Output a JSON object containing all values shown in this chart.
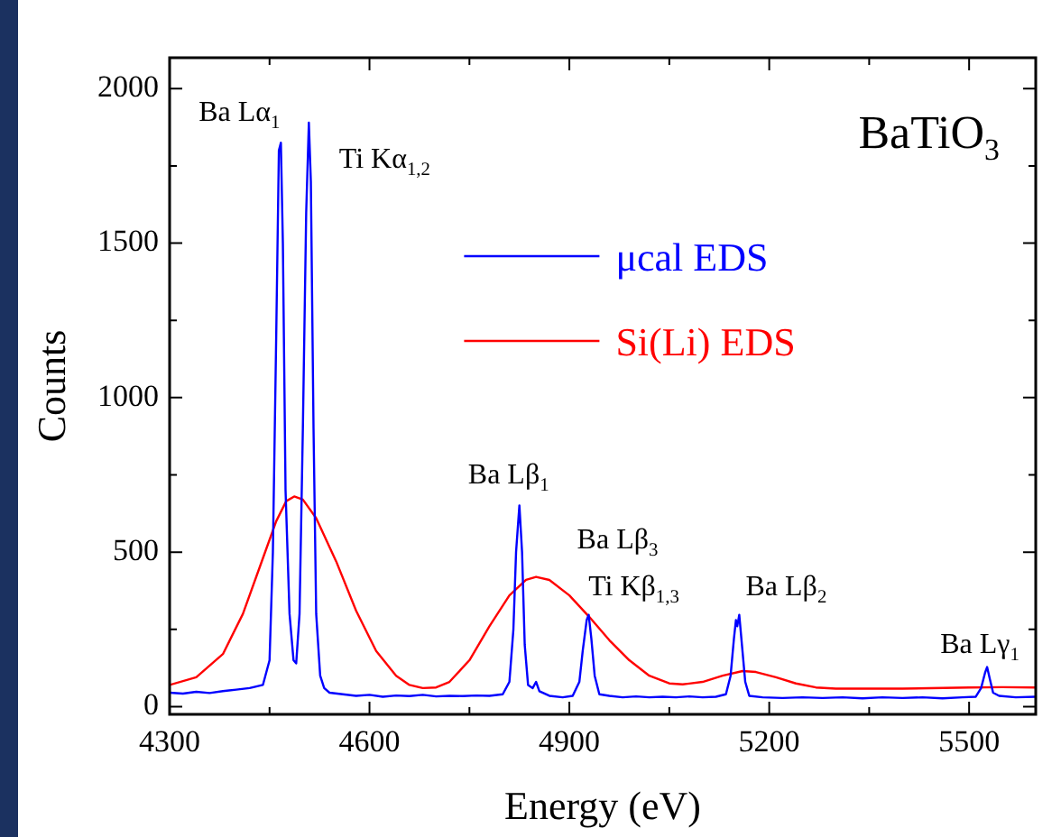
{
  "chart_data": {
    "type": "line",
    "xlabel": "Energy (eV)",
    "ylabel": "Counts",
    "xlim": [
      4300,
      5600
    ],
    "ylim": [
      -25,
      2100
    ],
    "xticks": [
      4300,
      {
        "value": 4450,
        "label": null
      },
      4600,
      {
        "value": 4750,
        "label": null
      },
      4900,
      {
        "value": 5050,
        "label": null
      },
      5200,
      {
        "value": 5350,
        "label": null
      },
      5500
    ],
    "yticks": [
      0,
      {
        "value": 250,
        "label": null
      },
      500,
      {
        "value": 750,
        "label": null
      },
      1000,
      {
        "value": 1250,
        "label": null
      },
      1500,
      {
        "value": 1750,
        "label": null
      },
      2000
    ],
    "grid": false,
    "legend": "top right",
    "marker": "none",
    "line_style": "solid",
    "series": [
      {
        "name": "μcal EDS",
        "color": "#0000ff",
        "x": [
          4300,
          4320,
          4340,
          4360,
          4380,
          4400,
          4420,
          4440,
          4450,
          4455,
          4460,
          4464,
          4467,
          4470,
          4474,
          4480,
          4486,
          4490,
          4495,
          4500,
          4505,
          4509,
          4512,
          4516,
          4520,
          4526,
          4532,
          4540,
          4560,
          4580,
          4600,
          4620,
          4640,
          4660,
          4680,
          4700,
          4720,
          4740,
          4760,
          4780,
          4800,
          4810,
          4816,
          4820,
          4825,
          4829,
          4833,
          4838,
          4845,
          4850,
          4855,
          4870,
          4890,
          4905,
          4915,
          4920,
          4926,
          4929,
          4933,
          4938,
          4945,
          4960,
          4980,
          5000,
          5020,
          5040,
          5060,
          5080,
          5100,
          5120,
          5135,
          5142,
          5147,
          5150,
          5152,
          5155,
          5159,
          5164,
          5170,
          5190,
          5220,
          5250,
          5280,
          5310,
          5340,
          5370,
          5400,
          5430,
          5460,
          5490,
          5510,
          5518,
          5524,
          5527,
          5531,
          5536,
          5545,
          5570,
          5600
        ],
        "values": [
          45,
          42,
          48,
          44,
          50,
          55,
          60,
          70,
          150,
          500,
          1200,
          1800,
          1825,
          1500,
          700,
          300,
          150,
          140,
          300,
          900,
          1600,
          1890,
          1700,
          900,
          300,
          100,
          60,
          45,
          40,
          35,
          38,
          32,
          36,
          34,
          38,
          33,
          35,
          34,
          36,
          35,
          40,
          80,
          250,
          500,
          651,
          500,
          200,
          70,
          60,
          80,
          50,
          35,
          30,
          35,
          80,
          180,
          280,
          297,
          220,
          100,
          40,
          35,
          30,
          33,
          30,
          32,
          30,
          33,
          30,
          32,
          40,
          100,
          220,
          280,
          260,
          297,
          200,
          80,
          35,
          30,
          28,
          30,
          28,
          30,
          27,
          30,
          28,
          30,
          27,
          30,
          32,
          60,
          110,
          128,
          90,
          45,
          35,
          30,
          32
        ]
      },
      {
        "name": "Si(Li) EDS",
        "color": "#ff0000",
        "x": [
          4300,
          4340,
          4380,
          4410,
          4440,
          4460,
          4475,
          4487,
          4500,
          4520,
          4550,
          4580,
          4610,
          4640,
          4660,
          4680,
          4700,
          4720,
          4750,
          4780,
          4810,
          4835,
          4850,
          4870,
          4900,
          4930,
          4960,
          4990,
          5020,
          5050,
          5070,
          5100,
          5130,
          5160,
          5180,
          5210,
          5240,
          5270,
          5300,
          5400,
          5500,
          5550,
          5600
        ],
        "values": [
          70,
          95,
          170,
          300,
          480,
          600,
          665,
          680,
          670,
          610,
          470,
          310,
          180,
          100,
          70,
          60,
          62,
          80,
          150,
          260,
          360,
          410,
          420,
          410,
          360,
          290,
          215,
          150,
          100,
          75,
          72,
          80,
          100,
          115,
          112,
          95,
          75,
          62,
          58,
          58,
          62,
          63,
          62
        ]
      }
    ],
    "annotations": [
      "BaTiO$_{3}$",
      {
        "text": "Ba Lα$_{1}$",
        "x": 4467,
        "y": 1825
      },
      {
        "text": "Ti Kα$_{1,2}$",
        "x": 4509,
        "y": 1890
      },
      {
        "text": "Ba Lβ$_{1}$",
        "x": 4825,
        "y": 651
      },
      {
        "text": "Ba Lβ$_{3}$",
        "x": 4929,
        "y": 297
      },
      {
        "text": "Ti Kβ$_{1,3}$",
        "x": 4929,
        "y": 297
      },
      {
        "text": "Ba Lβ$_{2}$",
        "x": 5155,
        "y": 297
      },
      {
        "text": "Ba Lγ$_{1}$",
        "x": 5527,
        "y": 128
      }
    ]
  }
}
